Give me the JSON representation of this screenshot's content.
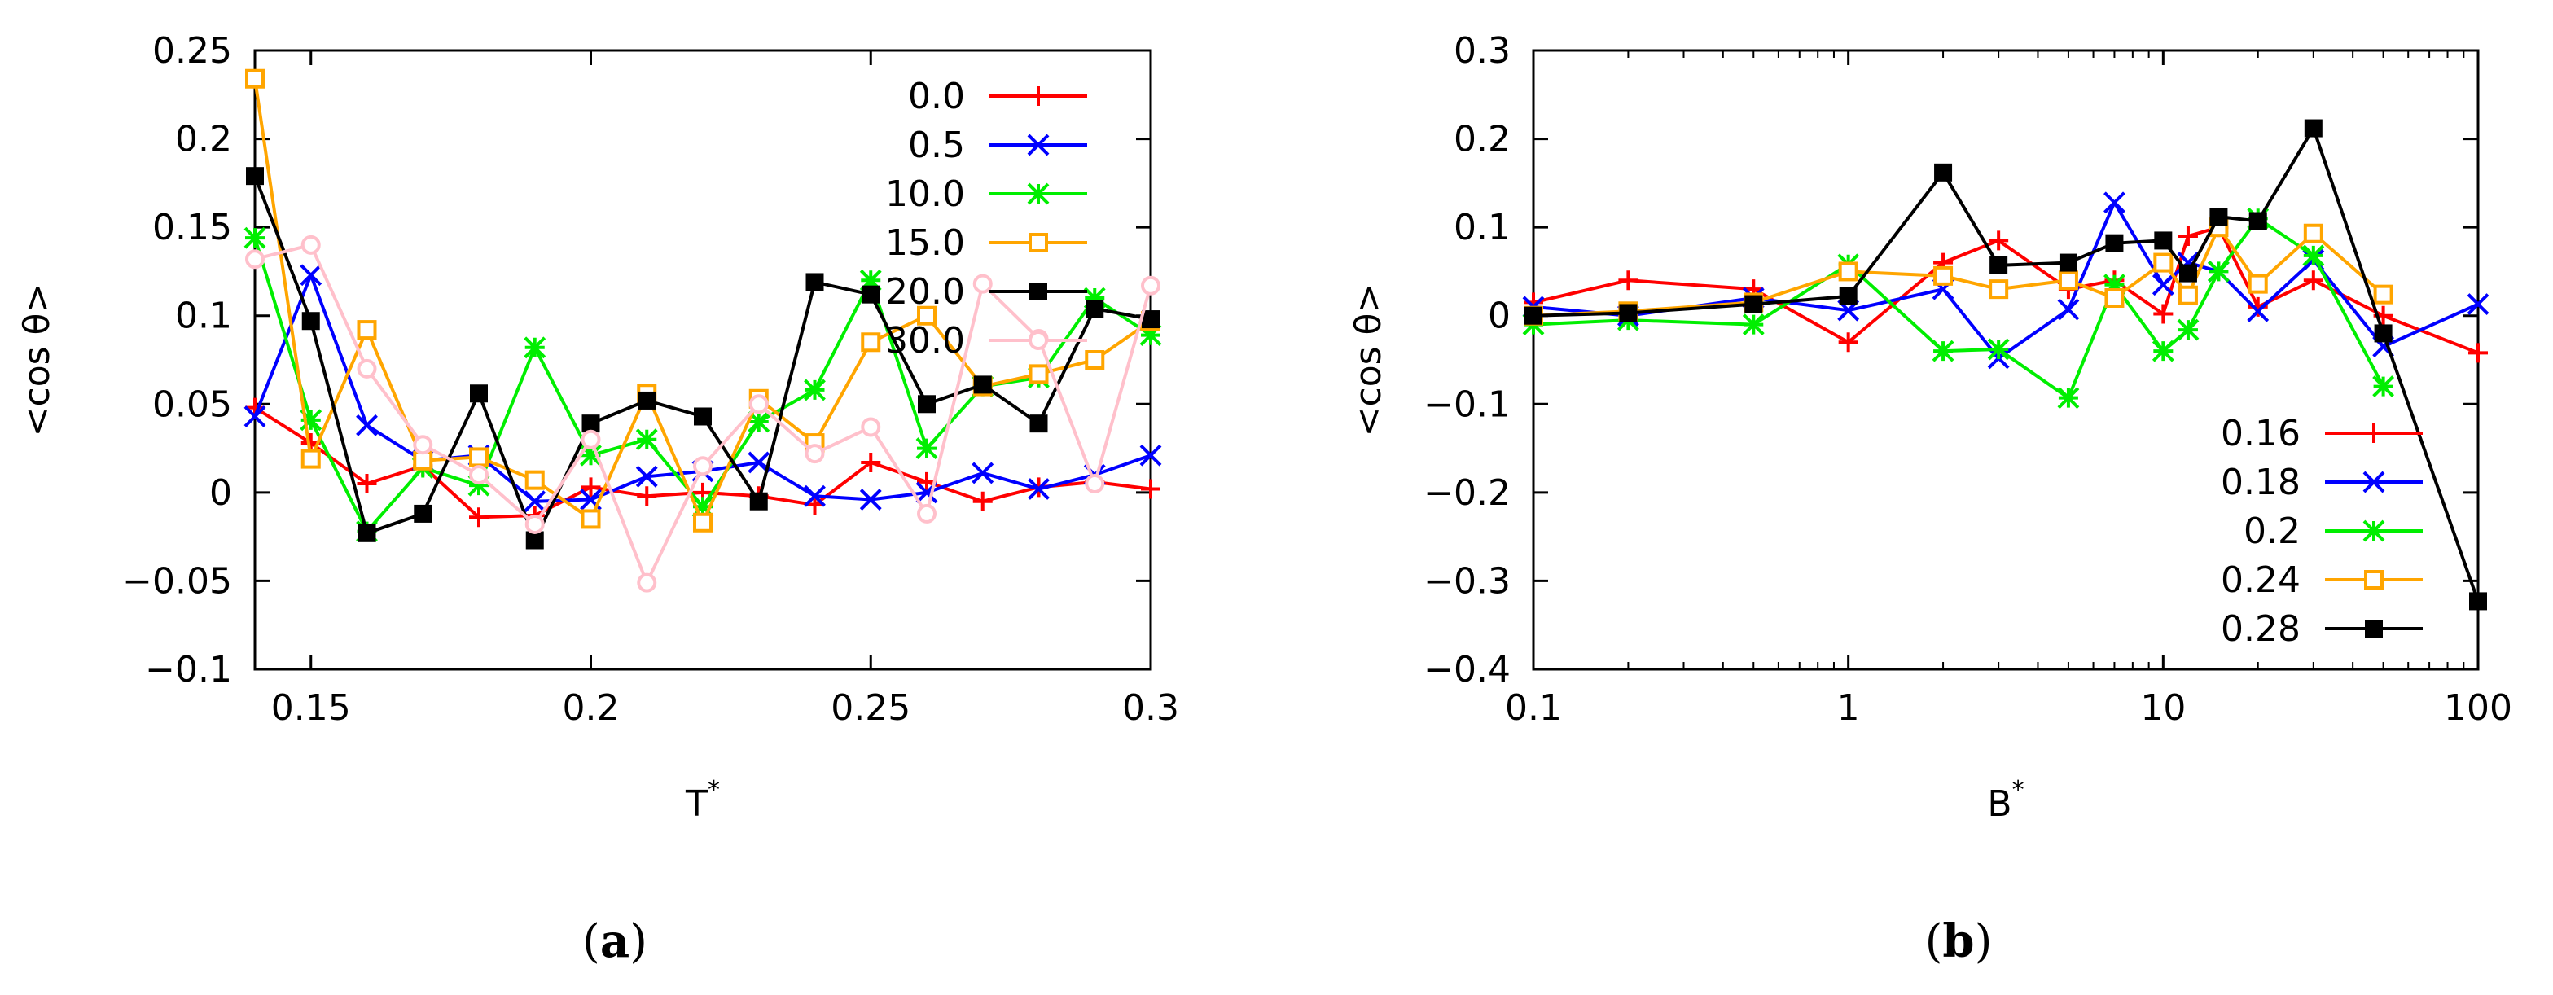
{
  "chart_data": [
    {
      "type": "line",
      "panel_label": {
        "open": "(",
        "letter": "a",
        "close": ")"
      },
      "xlabel": "T",
      "xlabel_sup": "*",
      "ylabel": "<cos θ>",
      "xscale": "linear",
      "xlim": [
        0.14,
        0.3
      ],
      "ylim": [
        -0.1,
        0.25
      ],
      "xticks": [
        0.15,
        0.2,
        0.25,
        0.3
      ],
      "xtick_labels": [
        "0.15",
        "0.2",
        "0.25",
        "0.3"
      ],
      "yticks": [
        -0.1,
        -0.05,
        0,
        0.05,
        0.1,
        0.15,
        0.2,
        0.25
      ],
      "ytick_labels": [
        "−0.1",
        "−0.05",
        "0",
        "0.05",
        "0.1",
        "0.15",
        "0.2",
        "0.25"
      ],
      "grid": false,
      "legend_position": "top-right",
      "x": [
        0.14,
        0.15,
        0.16,
        0.17,
        0.18,
        0.19,
        0.2,
        0.21,
        0.22,
        0.23,
        0.24,
        0.25,
        0.26,
        0.27,
        0.28,
        0.29,
        0.3
      ],
      "series": [
        {
          "name": "0.0",
          "color": "#ff0000",
          "marker": "plus",
          "legend": true,
          "y": [
            0.048,
            0.028,
            0.005,
            0.015,
            -0.014,
            -0.013,
            0.003,
            -0.002,
            0.0,
            -0.002,
            -0.007,
            0.017,
            0.006,
            -0.005,
            0.003,
            0.006,
            0.002
          ]
        },
        {
          "name": "0.5",
          "color": "#0000ff",
          "marker": "cross",
          "legend": true,
          "y": [
            0.043,
            0.123,
            0.038,
            0.018,
            0.021,
            -0.005,
            -0.004,
            0.009,
            0.012,
            0.017,
            -0.002,
            -0.004,
            0.0,
            0.011,
            0.002,
            0.01,
            0.021
          ]
        },
        {
          "name": "10.0",
          "color": "#00ee00",
          "marker": "star",
          "legend": true,
          "y": [
            0.144,
            0.041,
            -0.022,
            0.014,
            0.004,
            0.082,
            0.021,
            0.03,
            -0.008,
            0.04,
            0.058,
            0.12,
            0.025,
            0.06,
            0.065,
            0.11,
            0.089
          ]
        },
        {
          "name": "15.0",
          "color": "#ffa500",
          "marker": "open-square",
          "legend": true,
          "y": [
            0.234,
            0.019,
            0.092,
            0.018,
            0.02,
            0.007,
            -0.015,
            0.056,
            -0.017,
            0.053,
            0.028,
            0.085,
            0.1,
            0.06,
            0.067,
            0.075,
            0.097
          ]
        },
        {
          "name": "20.0",
          "color": "#000000",
          "marker": "filled-square",
          "legend": true,
          "y": [
            0.179,
            0.097,
            -0.023,
            -0.012,
            0.056,
            -0.027,
            0.039,
            0.052,
            0.043,
            -0.005,
            0.119,
            0.112,
            0.05,
            0.061,
            0.039,
            0.104,
            0.098
          ]
        },
        {
          "name": "30.0",
          "color": "#ffc0cb",
          "marker": "open-circle",
          "legend": true,
          "y": [
            0.132,
            0.14,
            0.07,
            0.027,
            0.01,
            -0.018,
            0.03,
            -0.051,
            0.015,
            0.05,
            0.022,
            0.037,
            -0.012,
            0.118,
            0.087,
            0.005,
            0.117
          ]
        }
      ]
    },
    {
      "type": "line",
      "panel_label": {
        "open": "(",
        "letter": "b",
        "close": ")"
      },
      "xlabel": "B",
      "xlabel_sup": "*",
      "ylabel": "<cos θ>",
      "xscale": "log",
      "xlim": [
        0.1,
        100
      ],
      "ylim": [
        -0.4,
        0.3
      ],
      "xticks": [
        0.1,
        1,
        10,
        100
      ],
      "xtick_labels": [
        "0.1",
        "1",
        "10",
        "100"
      ],
      "yticks": [
        -0.4,
        -0.3,
        -0.2,
        -0.1,
        0,
        0.1,
        0.2,
        0.3
      ],
      "ytick_labels": [
        "−0.4",
        "−0.3",
        "−0.2",
        "−0.1",
        "0",
        "0.1",
        "0.2",
        "0.3"
      ],
      "grid": false,
      "legend_position": "bottom-right",
      "series": [
        {
          "name": "0.16",
          "color": "#ff0000",
          "marker": "plus",
          "legend": true,
          "x": [
            0.1,
            0.2,
            0.5,
            1,
            2,
            3,
            5,
            7,
            10,
            12,
            15,
            20,
            30,
            50,
            100
          ],
          "y": [
            0.015,
            0.04,
            0.03,
            -0.03,
            0.06,
            0.085,
            0.03,
            0.04,
            0.002,
            0.09,
            0.1,
            0.01,
            0.04,
            0.0,
            -0.042
          ]
        },
        {
          "name": "0.18",
          "color": "#0000ff",
          "marker": "cross",
          "legend": true,
          "x": [
            0.1,
            0.2,
            0.5,
            1,
            2,
            3,
            5,
            7,
            10,
            12,
            15,
            20,
            30,
            50,
            100
          ],
          "y": [
            0.01,
            0.0,
            0.02,
            0.006,
            0.03,
            -0.048,
            0.007,
            0.128,
            0.035,
            0.06,
            0.05,
            0.005,
            0.063,
            -0.035,
            0.013
          ]
        },
        {
          "name": "0.2",
          "color": "#00ee00",
          "marker": "star",
          "legend": true,
          "x": [
            0.1,
            0.2,
            0.5,
            1,
            2,
            3,
            5,
            7,
            10,
            12,
            15,
            20,
            30,
            50
          ],
          "y": [
            -0.01,
            -0.005,
            -0.01,
            0.058,
            -0.04,
            -0.038,
            -0.093,
            0.035,
            -0.04,
            -0.016,
            0.05,
            0.11,
            0.068,
            -0.08
          ]
        },
        {
          "name": "0.24",
          "color": "#ffa500",
          "marker": "open-square",
          "legend": true,
          "x": [
            0.1,
            0.2,
            0.5,
            1,
            2,
            3,
            5,
            7,
            10,
            12,
            15,
            20,
            30,
            50
          ],
          "y": [
            0.0,
            0.005,
            0.015,
            0.05,
            0.045,
            0.03,
            0.04,
            0.02,
            0.06,
            0.023,
            0.1,
            0.036,
            0.093,
            0.024
          ]
        },
        {
          "name": "0.28",
          "color": "#000000",
          "marker": "filled-square",
          "legend": true,
          "x": [
            0.1,
            0.2,
            0.5,
            1,
            2,
            3,
            5,
            7,
            10,
            12,
            15,
            20,
            30,
            50,
            100
          ],
          "y": [
            0.0,
            0.003,
            0.013,
            0.022,
            0.162,
            0.057,
            0.06,
            0.082,
            0.085,
            0.048,
            0.112,
            0.107,
            0.212,
            -0.02,
            -0.323
          ]
        }
      ]
    }
  ]
}
